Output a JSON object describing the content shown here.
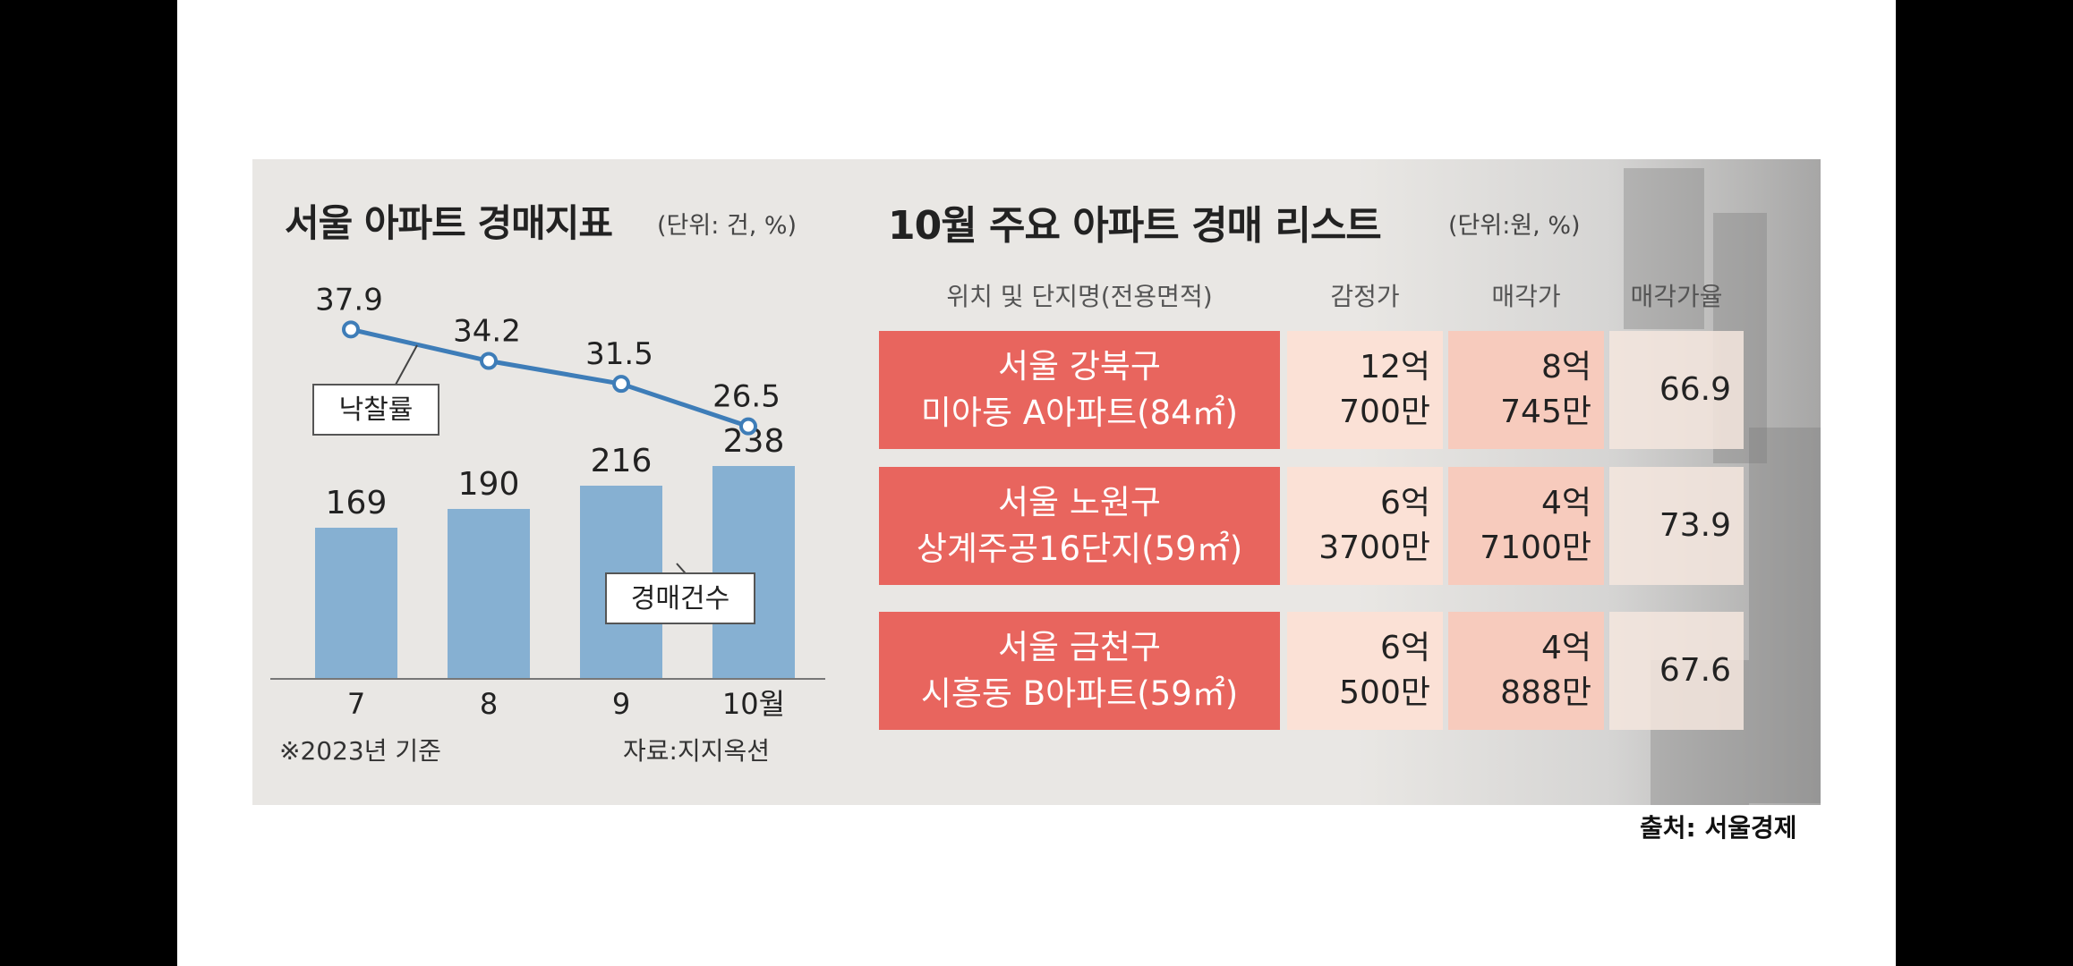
{
  "left_chart": {
    "title": "서울 아파트 경매지표",
    "unit": "(단위: 건, %)",
    "note": "※2023년 기준",
    "source": "자료:지지옥션",
    "line_label": "낙찰률",
    "bar_label": "경매건수"
  },
  "chart_data": {
    "type": "bar",
    "categories": [
      "7",
      "8",
      "9",
      "10월"
    ],
    "series": [
      {
        "name": "경매건수",
        "type": "bar",
        "values": [
          169,
          190,
          216,
          238
        ]
      },
      {
        "name": "낙찰률",
        "type": "line",
        "values": [
          37.9,
          34.2,
          31.5,
          26.5
        ]
      }
    ],
    "value_labels_bar": [
      "169",
      "190",
      "216",
      "238"
    ],
    "value_labels_line": [
      "37.9",
      "34.2",
      "31.5",
      "26.5"
    ],
    "colors": {
      "bar": "#86b0d2",
      "line": "#3e7db8"
    }
  },
  "right_table": {
    "title": "10월 주요 아파트 경매 리스트",
    "unit": "(단위:원, %)",
    "headers": [
      "위치 및 단지명(전용면적)",
      "감정가",
      "매각가",
      "매각가율"
    ],
    "rows": [
      {
        "loc1": "서울 강북구",
        "loc2": "미아동 A아파트(84㎡)",
        "appr1": "12억",
        "appr2": "700만",
        "sale1": "8억",
        "sale2": "745만",
        "rate": "66.9"
      },
      {
        "loc1": "서울 노원구",
        "loc2": "상계주공16단지(59㎡)",
        "appr1": "6억",
        "appr2": "3700만",
        "sale1": "4억",
        "sale2": "7100만",
        "rate": "73.9"
      },
      {
        "loc1": "서울 금천구",
        "loc2": "시흥동 B아파트(59㎡)",
        "appr1": "6억",
        "appr2": "500만",
        "sale1": "4억",
        "sale2": "888만",
        "rate": "67.6"
      }
    ]
  },
  "footer": {
    "credit": "출처: 서울경제"
  }
}
